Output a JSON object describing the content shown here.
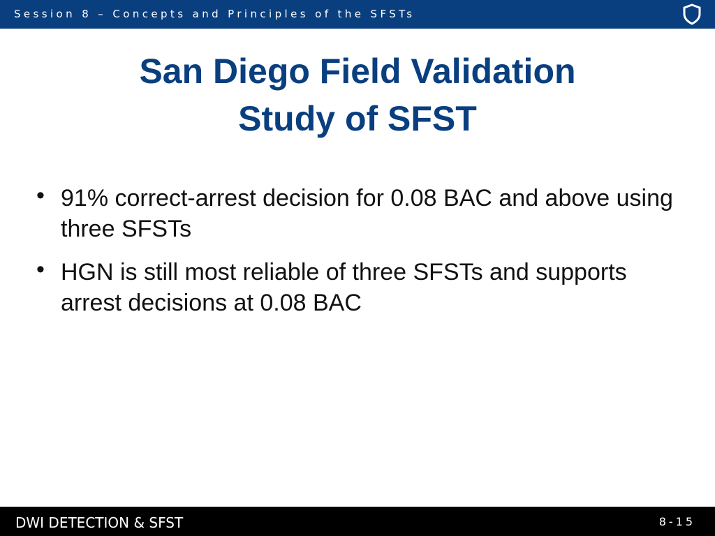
{
  "header": {
    "session": "Session 8 – Concepts and Principles of the SFSTs"
  },
  "title": {
    "lines": [
      "San Diego Field Validation",
      "Study of SFST"
    ]
  },
  "bullets": [
    "91% correct-arrest decision for 0.08 BAC and above using three SFSTs",
    "HGN is still most reliable of three SFSTs and supports arrest decisions at 0.08 BAC"
  ],
  "footer": {
    "left": "DWI DETECTION & SFST",
    "page": "8-15"
  }
}
